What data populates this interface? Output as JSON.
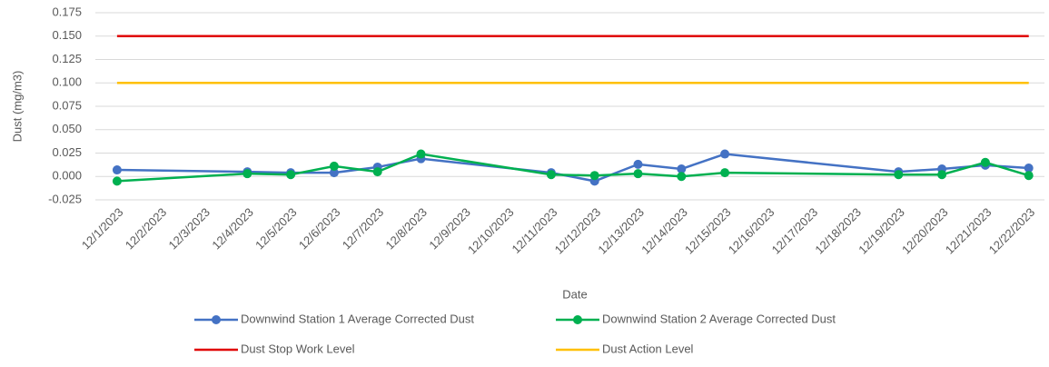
{
  "chart_data": {
    "type": "line",
    "y_label": "Dust (mg/m3)",
    "x_label": "Date",
    "categories": [
      "12/1/2023",
      "12/2/2023",
      "12/3/2023",
      "12/4/2023",
      "12/5/2023",
      "12/6/2023",
      "12/7/2023",
      "12/8/2023",
      "12/9/2023",
      "12/10/2023",
      "12/11/2023",
      "12/12/2023",
      "12/13/2023",
      "12/14/2023",
      "12/15/2023",
      "12/16/2023",
      "12/17/2023",
      "12/18/2023",
      "12/19/2023",
      "12/20/2023",
      "12/21/2023",
      "12/22/2023"
    ],
    "connect_gaps": true,
    "series": [
      {
        "name": "Downwind Station 1 Average Corrected Dust",
        "color": "#4472c4",
        "markers": true,
        "values": [
          0.007,
          null,
          null,
          0.005,
          0.004,
          0.004,
          0.01,
          0.019,
          null,
          null,
          0.004,
          -0.005,
          0.013,
          0.008,
          0.024,
          null,
          null,
          null,
          0.005,
          0.008,
          0.012,
          0.009
        ]
      },
      {
        "name": "Downwind Station 2 Average Corrected Dust",
        "color": "#00b050",
        "markers": true,
        "values": [
          -0.005,
          null,
          null,
          0.003,
          0.002,
          0.011,
          0.005,
          0.024,
          null,
          null,
          0.002,
          0.001,
          0.003,
          0.0,
          0.004,
          null,
          null,
          null,
          0.002,
          0.002,
          0.015,
          0.001
        ]
      },
      {
        "name": "Dust Stop Work Level",
        "color": "#e00000",
        "markers": false,
        "values": [
          0.15,
          0.15,
          0.15,
          0.15,
          0.15,
          0.15,
          0.15,
          0.15,
          0.15,
          0.15,
          0.15,
          0.15,
          0.15,
          0.15,
          0.15,
          0.15,
          0.15,
          0.15,
          0.15,
          0.15,
          0.15,
          0.15
        ]
      },
      {
        "name": "Dust Action Level",
        "color": "#ffc000",
        "markers": false,
        "values": [
          0.1,
          0.1,
          0.1,
          0.1,
          0.1,
          0.1,
          0.1,
          0.1,
          0.1,
          0.1,
          0.1,
          0.1,
          0.1,
          0.1,
          0.1,
          0.1,
          0.1,
          0.1,
          0.1,
          0.1,
          0.1,
          0.1
        ]
      }
    ],
    "ylim": [
      -0.025,
      0.175
    ],
    "yticks": [
      {
        "value": -0.025,
        "label": "-0.025"
      },
      {
        "value": 0,
        "label": "0.000"
      },
      {
        "value": 0.025,
        "label": "0.025"
      },
      {
        "value": 0.05,
        "label": "0.050"
      },
      {
        "value": 0.075,
        "label": "0.075"
      },
      {
        "value": 0.1,
        "label": "0.100"
      },
      {
        "value": 0.125,
        "label": "0.125"
      },
      {
        "value": 0.15,
        "label": "0.150"
      },
      {
        "value": 0.175,
        "label": "0.175"
      }
    ],
    "grid": true,
    "legend": "bottom"
  }
}
